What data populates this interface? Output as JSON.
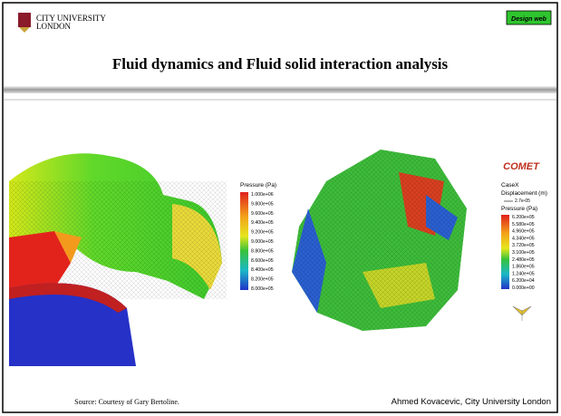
{
  "header": {
    "logo_line1": "CITY UNIVERSITY",
    "logo_line2": "LONDON",
    "tag": "Design web",
    "title": "Fluid dynamics and Fluid solid interaction analysis"
  },
  "left_figure": {
    "legend_title": "Pressure (Pa)",
    "legend_labels": [
      "1.000e+06",
      "9.800e+05",
      "9.600e+05",
      "9.400e+05",
      "9.200e+05",
      "9.000e+05",
      "8.800e+05",
      "8.600e+05",
      "8.400e+05",
      "8.200e+05",
      "8.000e+05"
    ]
  },
  "right_figure": {
    "brand": "COMET",
    "case": "CaseX",
    "displacement_title": "Displacement (m)",
    "displacement_scale": "2.7e-05",
    "legend_title": "Pressure (Pa)",
    "legend_labels": [
      "6.200e+05",
      "5.580e+05",
      "4.960e+05",
      "4.340e+05",
      "3.720e+05",
      "3.100e+05",
      "2.480e+05",
      "1.860e+05",
      "1.240e+05",
      "6.200e+04",
      "0.000e+00"
    ]
  },
  "footer": {
    "source": "Source: Courtesy of Gary Bertoline.",
    "author": "Ahmed Kovacevic, City University London"
  }
}
